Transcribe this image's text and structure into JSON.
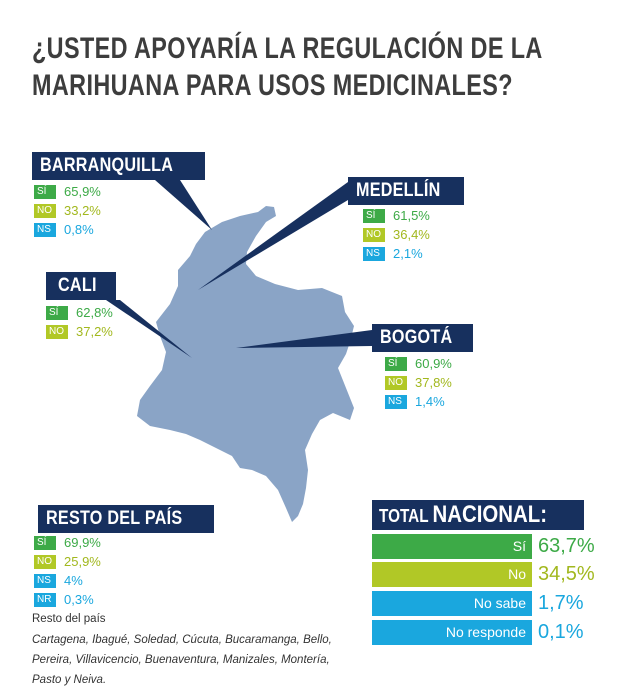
{
  "title": {
    "line1": "¿USTED APOYARÍA LA REGULACIÓN DE LA",
    "line2": "MARIHUANA PARA USOS MEDICINALES?"
  },
  "colors": {
    "navy": "#17305e",
    "si": "#3daa47",
    "no": "#b1c826",
    "ns": "#1aa7de",
    "map": "#8aa4c6"
  },
  "cities": {
    "barranquilla": {
      "name": "BARRANQUILLA",
      "rows": [
        {
          "tag": "SÍ",
          "value": "65,9%"
        },
        {
          "tag": "NO",
          "value": "33,2%"
        },
        {
          "tag": "NS",
          "value": "0,8%"
        }
      ]
    },
    "medellin": {
      "name": "MEDELLÍN",
      "rows": [
        {
          "tag": "SÍ",
          "value": "61,5%"
        },
        {
          "tag": "NO",
          "value": "36,4%"
        },
        {
          "tag": "NS",
          "value": "2,1%"
        }
      ]
    },
    "cali": {
      "name": "CALI",
      "rows": [
        {
          "tag": "SÍ",
          "value": "62,8%"
        },
        {
          "tag": "NO",
          "value": "37,2%"
        }
      ]
    },
    "bogota": {
      "name": "BOGOTÁ",
      "rows": [
        {
          "tag": "SÍ",
          "value": "60,9%"
        },
        {
          "tag": "NO",
          "value": "37,8%"
        },
        {
          "tag": "NS",
          "value": "1,4%"
        }
      ]
    },
    "resto": {
      "name": "RESTO DEL PAÍS",
      "rows": [
        {
          "tag": "SÍ",
          "value": "69,9%"
        },
        {
          "tag": "NO",
          "value": "25,9%"
        },
        {
          "tag": "NS",
          "value": "4%"
        },
        {
          "tag": "NR",
          "value": "0,3%"
        }
      ]
    }
  },
  "resto_note": {
    "title": "Resto del país",
    "list": "Cartagena, Ibagué, Soledad, Cúcuta, Bucaramanga, Bello, Pereira, Villavicencio, Buenaventura, Manizales, Montería, Pasto y Neiva."
  },
  "total": {
    "label_a": "TOTAL ",
    "label_b": "NACIONAL:",
    "rows": [
      {
        "label": "Sí",
        "value": "63,7%"
      },
      {
        "label": "No",
        "value": "34,5%"
      },
      {
        "label": "No sabe",
        "value": "1,7%"
      },
      {
        "label": "No responde",
        "value": "0,1%"
      }
    ]
  }
}
